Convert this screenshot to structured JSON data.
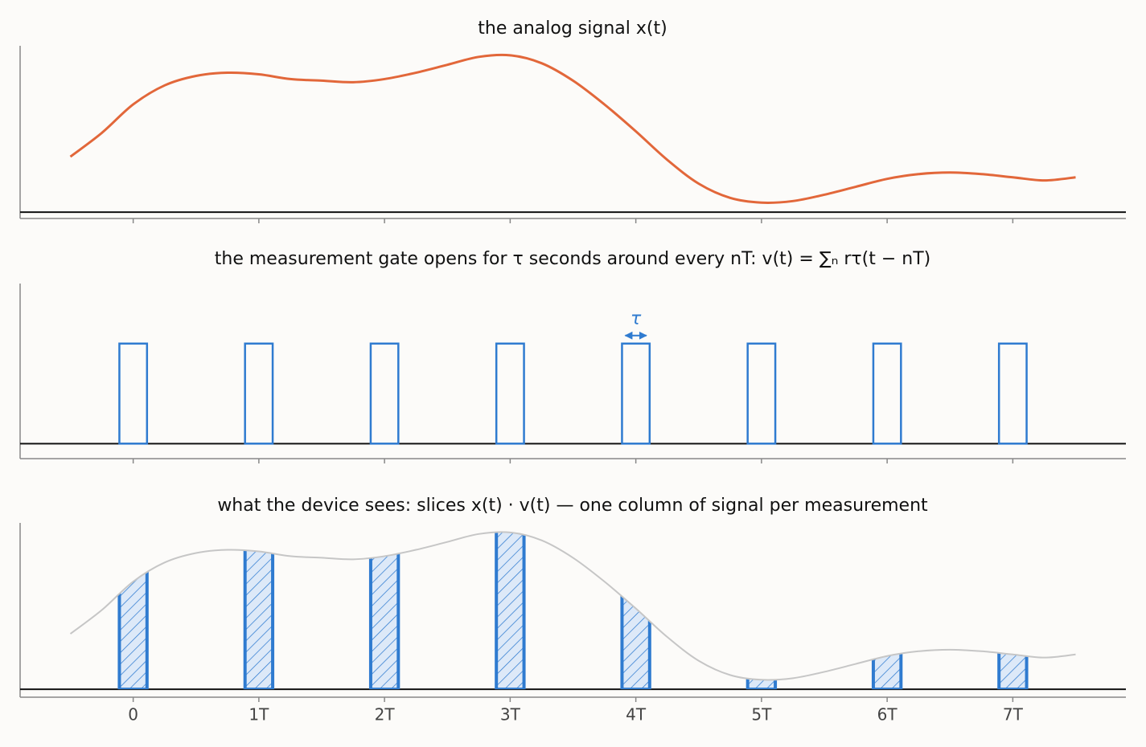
{
  "chart_data": [
    {
      "type": "line",
      "title": "the analog signal  x(t)",
      "color": "#e2673a",
      "x": [
        -0.5,
        -0.25,
        0,
        0.25,
        0.5,
        0.75,
        1,
        1.25,
        1.5,
        1.75,
        2,
        2.25,
        2.5,
        2.75,
        3,
        3.25,
        3.5,
        3.75,
        4,
        4.25,
        4.5,
        4.75,
        5,
        5.25,
        5.5,
        5.75,
        6,
        6.25,
        6.5,
        6.75,
        7,
        7.25,
        7.5
      ],
      "y": [
        0.35,
        0.5,
        0.68,
        0.8,
        0.86,
        0.88,
        0.87,
        0.84,
        0.83,
        0.82,
        0.84,
        0.88,
        0.93,
        0.98,
        0.99,
        0.94,
        0.83,
        0.68,
        0.51,
        0.33,
        0.18,
        0.09,
        0.06,
        0.07,
        0.11,
        0.16,
        0.21,
        0.24,
        0.25,
        0.24,
        0.22,
        0.2,
        0.22
      ],
      "xlim": [
        -0.9,
        7.9
      ],
      "ylim": [
        -0.04,
        1.05
      ]
    },
    {
      "type": "pulse",
      "title": "the measurement gate opens for τ seconds around every nT:   v(t) = ∑ₙ rτ(t − nT)",
      "color": "#2f7bd0",
      "n": [
        0,
        1,
        2,
        3,
        4,
        5,
        6,
        7
      ],
      "tau": 0.22,
      "height": 1,
      "annotation": "τ",
      "xlim": [
        -0.9,
        7.9
      ],
      "ylim": [
        -0.15,
        1.6
      ]
    },
    {
      "type": "slices",
      "title": "what the device sees:  slices  x(t) · v(t)  — one column of signal per measurement",
      "color": "#2f7bd0",
      "curve_color": "#c6c6c6",
      "xlim": [
        -0.9,
        7.9
      ],
      "ylim": [
        -0.05,
        1.05
      ],
      "xticks": [
        0,
        {
          "value": 1,
          "label": "1T"
        },
        {
          "value": 2,
          "label": "2T"
        },
        {
          "value": 3,
          "label": "3T"
        },
        {
          "value": 4,
          "label": "4T"
        },
        {
          "value": 5,
          "label": "5T"
        },
        {
          "value": 6,
          "label": "6T"
        },
        {
          "value": 7,
          "label": "7T"
        }
      ]
    }
  ]
}
